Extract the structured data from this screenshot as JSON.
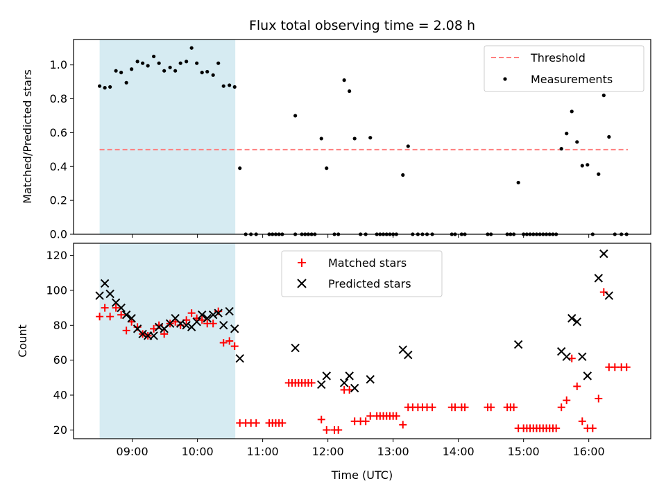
{
  "chart_data": [
    {
      "type": "scatter",
      "title": "Flux total observing time = 2.08 h",
      "xlabel": "",
      "ylabel": "Matched/Predicted stars",
      "xlim": [
        8.1,
        16.95
      ],
      "ylim": [
        0,
        1.15
      ],
      "yticks": [
        0.0,
        0.2,
        0.4,
        0.6,
        0.8,
        1.0
      ],
      "ytick_labels": [
        "0.0",
        "0.2",
        "0.4",
        "0.6",
        "0.8",
        "1.0"
      ],
      "xticks": [
        9,
        10,
        11,
        12,
        13,
        14,
        15,
        16
      ],
      "shaded_span": [
        8.5,
        10.58
      ],
      "legend_location": "upper right",
      "threshold": {
        "name": "Threshold",
        "value": 0.5,
        "x_range": [
          8.5,
          16.6
        ],
        "color": "#ff7f7f"
      },
      "series": [
        {
          "name": "Measurements",
          "marker": "dot",
          "color": "#000000",
          "points": [
            [
              8.5,
              0.875
            ],
            [
              8.58,
              0.865
            ],
            [
              8.66,
              0.87
            ],
            [
              8.75,
              0.965
            ],
            [
              8.83,
              0.955
            ],
            [
              8.91,
              0.895
            ],
            [
              8.99,
              0.975
            ],
            [
              9.08,
              1.02
            ],
            [
              9.16,
              1.01
            ],
            [
              9.24,
              0.995
            ],
            [
              9.33,
              1.05
            ],
            [
              9.41,
              1.01
            ],
            [
              9.49,
              0.965
            ],
            [
              9.58,
              0.985
            ],
            [
              9.66,
              0.965
            ],
            [
              9.74,
              1.01
            ],
            [
              9.83,
              1.02
            ],
            [
              9.91,
              1.1
            ],
            [
              9.99,
              1.01
            ],
            [
              10.07,
              0.955
            ],
            [
              10.15,
              0.96
            ],
            [
              10.24,
              0.94
            ],
            [
              10.32,
              1.01
            ],
            [
              10.4,
              0.875
            ],
            [
              10.49,
              0.88
            ],
            [
              10.57,
              0.87
            ],
            [
              10.65,
              0.39
            ],
            [
              10.74,
              0.0
            ],
            [
              10.82,
              0.0
            ],
            [
              10.9,
              0.0
            ],
            [
              11.1,
              0.0
            ],
            [
              11.15,
              0.0
            ],
            [
              11.2,
              0.0
            ],
            [
              11.25,
              0.0
            ],
            [
              11.3,
              0.0
            ],
            [
              11.5,
              0.7
            ],
            [
              11.5,
              0.0
            ],
            [
              11.6,
              0.0
            ],
            [
              11.65,
              0.0
            ],
            [
              11.7,
              0.0
            ],
            [
              11.75,
              0.0
            ],
            [
              11.8,
              0.0
            ],
            [
              11.9,
              0.565
            ],
            [
              11.98,
              0.39
            ],
            [
              12.1,
              0.0
            ],
            [
              12.16,
              0.0
            ],
            [
              12.25,
              0.91
            ],
            [
              12.33,
              0.845
            ],
            [
              12.41,
              0.565
            ],
            [
              12.5,
              0.0
            ],
            [
              12.58,
              0.0
            ],
            [
              12.65,
              0.57
            ],
            [
              12.75,
              0.0
            ],
            [
              12.8,
              0.0
            ],
            [
              12.85,
              0.0
            ],
            [
              12.9,
              0.0
            ],
            [
              12.95,
              0.0
            ],
            [
              13.0,
              0.0
            ],
            [
              13.05,
              0.0
            ],
            [
              13.15,
              0.35
            ],
            [
              13.23,
              0.52
            ],
            [
              13.3,
              0.0
            ],
            [
              13.38,
              0.0
            ],
            [
              13.45,
              0.0
            ],
            [
              13.52,
              0.0
            ],
            [
              13.6,
              0.0
            ],
            [
              13.9,
              0.0
            ],
            [
              13.95,
              0.0
            ],
            [
              14.05,
              0.0
            ],
            [
              14.1,
              0.0
            ],
            [
              14.45,
              0.0
            ],
            [
              14.5,
              0.0
            ],
            [
              14.75,
              0.0
            ],
            [
              14.8,
              0.0
            ],
            [
              14.85,
              0.0
            ],
            [
              14.92,
              0.305
            ],
            [
              15.0,
              0.0
            ],
            [
              15.05,
              0.0
            ],
            [
              15.1,
              0.0
            ],
            [
              15.15,
              0.0
            ],
            [
              15.2,
              0.0
            ],
            [
              15.25,
              0.0
            ],
            [
              15.3,
              0.0
            ],
            [
              15.35,
              0.0
            ],
            [
              15.4,
              0.0
            ],
            [
              15.45,
              0.0
            ],
            [
              15.5,
              0.0
            ],
            [
              15.58,
              0.505
            ],
            [
              15.66,
              0.595
            ],
            [
              15.74,
              0.725
            ],
            [
              15.82,
              0.545
            ],
            [
              15.9,
              0.405
            ],
            [
              15.98,
              0.41
            ],
            [
              16.06,
              0.0
            ],
            [
              16.15,
              0.355
            ],
            [
              16.23,
              0.82
            ],
            [
              16.31,
              0.575
            ],
            [
              16.4,
              0.0
            ],
            [
              16.5,
              0.0
            ],
            [
              16.58,
              0.0
            ]
          ]
        }
      ]
    },
    {
      "type": "scatter",
      "title": "",
      "xlabel": "Time (UTC)",
      "ylabel": "Count",
      "xlim": [
        8.1,
        16.95
      ],
      "ylim": [
        15,
        127
      ],
      "yticks": [
        20,
        40,
        60,
        80,
        100,
        120
      ],
      "ytick_labels": [
        "20",
        "40",
        "60",
        "80",
        "100",
        "120"
      ],
      "xticks": [
        9,
        10,
        11,
        12,
        13,
        14,
        15,
        16
      ],
      "xtick_labels": [
        "09:00",
        "10:00",
        "11:00",
        "12:00",
        "13:00",
        "14:00",
        "15:00",
        "16:00"
      ],
      "shaded_span": [
        8.5,
        10.58
      ],
      "legend_location": "upper center",
      "series": [
        {
          "name": "Matched stars",
          "marker": "plus",
          "color": "#ff0000",
          "points": [
            [
              8.5,
              85
            ],
            [
              8.58,
              90
            ],
            [
              8.66,
              85
            ],
            [
              8.75,
              90
            ],
            [
              8.83,
              86
            ],
            [
              8.91,
              77
            ],
            [
              8.99,
              82
            ],
            [
              9.08,
              79
            ],
            [
              9.16,
              75
            ],
            [
              9.24,
              74
            ],
            [
              9.33,
              78
            ],
            [
              9.41,
              80
            ],
            [
              9.49,
              75
            ],
            [
              9.58,
              81
            ],
            [
              9.66,
              82
            ],
            [
              9.74,
              80
            ],
            [
              9.83,
              83
            ],
            [
              9.91,
              87
            ],
            [
              9.99,
              84
            ],
            [
              10.07,
              83
            ],
            [
              10.15,
              81
            ],
            [
              10.24,
              81
            ],
            [
              10.32,
              88
            ],
            [
              10.4,
              70
            ],
            [
              10.49,
              71
            ],
            [
              10.57,
              68
            ],
            [
              10.65,
              24
            ],
            [
              10.74,
              24
            ],
            [
              10.82,
              24
            ],
            [
              10.9,
              24
            ],
            [
              11.1,
              24
            ],
            [
              11.15,
              24
            ],
            [
              11.2,
              24
            ],
            [
              11.25,
              24
            ],
            [
              11.3,
              24
            ],
            [
              11.4,
              47
            ],
            [
              11.45,
              47
            ],
            [
              11.5,
              47
            ],
            [
              11.55,
              47
            ],
            [
              11.6,
              47
            ],
            [
              11.65,
              47
            ],
            [
              11.7,
              47
            ],
            [
              11.75,
              47
            ],
            [
              11.9,
              26
            ],
            [
              11.98,
              20
            ],
            [
              12.1,
              20
            ],
            [
              12.16,
              20
            ],
            [
              12.25,
              43
            ],
            [
              12.33,
              43
            ],
            [
              12.41,
              25
            ],
            [
              12.5,
              25
            ],
            [
              12.58,
              25
            ],
            [
              12.65,
              28
            ],
            [
              12.75,
              28
            ],
            [
              12.8,
              28
            ],
            [
              12.85,
              28
            ],
            [
              12.9,
              28
            ],
            [
              12.95,
              28
            ],
            [
              13.0,
              28
            ],
            [
              13.05,
              28
            ],
            [
              13.15,
              23
            ],
            [
              13.23,
              33
            ],
            [
              13.3,
              33
            ],
            [
              13.38,
              33
            ],
            [
              13.45,
              33
            ],
            [
              13.52,
              33
            ],
            [
              13.6,
              33
            ],
            [
              13.9,
              33
            ],
            [
              13.95,
              33
            ],
            [
              14.05,
              33
            ],
            [
              14.1,
              33
            ],
            [
              14.45,
              33
            ],
            [
              14.5,
              33
            ],
            [
              14.75,
              33
            ],
            [
              14.8,
              33
            ],
            [
              14.85,
              33
            ],
            [
              14.92,
              21
            ],
            [
              15.0,
              21
            ],
            [
              15.05,
              21
            ],
            [
              15.1,
              21
            ],
            [
              15.15,
              21
            ],
            [
              15.2,
              21
            ],
            [
              15.25,
              21
            ],
            [
              15.3,
              21
            ],
            [
              15.35,
              21
            ],
            [
              15.4,
              21
            ],
            [
              15.45,
              21
            ],
            [
              15.5,
              21
            ],
            [
              15.58,
              33
            ],
            [
              15.66,
              37
            ],
            [
              15.74,
              61
            ],
            [
              15.82,
              45
            ],
            [
              15.9,
              25
            ],
            [
              15.98,
              21
            ],
            [
              16.06,
              21
            ],
            [
              16.15,
              38
            ],
            [
              16.23,
              99
            ],
            [
              16.31,
              56
            ],
            [
              16.4,
              56
            ],
            [
              16.5,
              56
            ],
            [
              16.58,
              56
            ]
          ]
        },
        {
          "name": "Predicted stars",
          "marker": "x",
          "color": "#000000",
          "points": [
            [
              8.5,
              97
            ],
            [
              8.58,
              104
            ],
            [
              8.66,
              98
            ],
            [
              8.75,
              93
            ],
            [
              8.83,
              90
            ],
            [
              8.91,
              86
            ],
            [
              8.99,
              84
            ],
            [
              9.08,
              78
            ],
            [
              9.16,
              75
            ],
            [
              9.24,
              74
            ],
            [
              9.33,
              74
            ],
            [
              9.41,
              79
            ],
            [
              9.49,
              78
            ],
            [
              9.58,
              81
            ],
            [
              9.66,
              84
            ],
            [
              9.74,
              81
            ],
            [
              9.83,
              80
            ],
            [
              9.91,
              79
            ],
            [
              9.99,
              82
            ],
            [
              10.07,
              86
            ],
            [
              10.15,
              84
            ],
            [
              10.24,
              86
            ],
            [
              10.32,
              87
            ],
            [
              10.4,
              80
            ],
            [
              10.49,
              88
            ],
            [
              10.57,
              78
            ],
            [
              10.65,
              61
            ],
            [
              11.5,
              67
            ],
            [
              11.9,
              46
            ],
            [
              11.98,
              51
            ],
            [
              12.25,
              47
            ],
            [
              12.33,
              51
            ],
            [
              12.41,
              44
            ],
            [
              12.65,
              49
            ],
            [
              13.15,
              66
            ],
            [
              13.23,
              63
            ],
            [
              14.92,
              69
            ],
            [
              15.58,
              65
            ],
            [
              15.66,
              62
            ],
            [
              15.74,
              84
            ],
            [
              15.82,
              82
            ],
            [
              15.9,
              62
            ],
            [
              15.98,
              51
            ],
            [
              16.15,
              107
            ],
            [
              16.23,
              121
            ],
            [
              16.31,
              97
            ]
          ]
        }
      ]
    }
  ]
}
